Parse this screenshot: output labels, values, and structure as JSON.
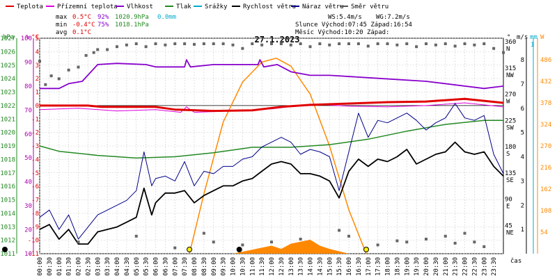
{
  "chart_data": {
    "type": "line",
    "title": "27.1.2023",
    "legend": [
      {
        "name": "Teplota",
        "color": "#e00000"
      },
      {
        "name": "Přízemní teplota",
        "color": "#dd00dd"
      },
      {
        "name": "Vlhkost",
        "color": "#8800cc"
      },
      {
        "name": "Tlak",
        "color": "#228822"
      },
      {
        "name": "Srážky",
        "color": "#00aacc"
      },
      {
        "name": "Rychlost větru",
        "color": "#000000"
      },
      {
        "name": "Náraz větru",
        "color": "#000088"
      },
      {
        "name": "Směr větru",
        "color": "#555555"
      }
    ],
    "stats": {
      "max_label": "max",
      "min_label": "min",
      "avg_label": "avg",
      "max_temp": "0.5°C",
      "max_hum": "92%",
      "max_press": "1020.9hPa",
      "max_rain": "0.0mm",
      "min_temp": "-0.4°C",
      "min_hum": "75%",
      "min_press": "1018.1hPa",
      "avg_temp": "0.1°C",
      "ws": "WS:5.4m/s",
      "wg": "WG:7.2m/s",
      "sun": "Slunce Východ:07:45  Západ:16:54",
      "moon": "Měsíc  Východ:10:20  Západ:"
    },
    "axes": {
      "hpa": {
        "label": "hPa",
        "color": "#228822",
        "ticks": [
          "1027",
          "1026",
          "1025",
          "1024",
          "1023",
          "1022",
          "1021",
          "1020",
          "1019",
          "1018",
          "1017",
          "1016",
          "1015",
          "1014",
          "1013",
          "1012",
          "1011"
        ]
      },
      "pct": {
        "label": "%",
        "color": "#aa00aa",
        "ticks": [
          "100",
          "90",
          "80",
          "70",
          "60",
          "50",
          "40",
          "30",
          "20",
          "10"
        ]
      },
      "degc": {
        "label": "°C",
        "color": "#e00000",
        "ticks": [
          "5",
          "4",
          "3",
          "2",
          "1",
          "0",
          "-1",
          "-2",
          "-3",
          "-4",
          "-5",
          "-6",
          "-7",
          "-8",
          "-9",
          "-10",
          "-11"
        ]
      },
      "dir": {
        "label": "°",
        "ticks": [
          {
            "v": "360",
            "d": "N"
          },
          {
            "v": "315",
            "d": "NW"
          },
          {
            "v": "270",
            "d": "W"
          },
          {
            "v": "225",
            "d": "SW"
          },
          {
            "v": "180",
            "d": "S"
          },
          {
            "v": "135",
            "d": "SE"
          },
          {
            "v": "90",
            "d": "E"
          },
          {
            "v": "45",
            "d": "NE"
          }
        ]
      },
      "ms": {
        "label": "m/s",
        "ticks": [
          "8",
          "7",
          "6",
          "5",
          "4",
          "3",
          "2",
          "1"
        ]
      },
      "mm": {
        "label": "mm",
        "color": "#00aacc",
        "tick": "1"
      },
      "w": {
        "label": "W",
        "color": "#ff8800",
        "ticks": [
          "486",
          "432",
          "378",
          "324",
          "270",
          "216",
          "162",
          "108",
          "54"
        ]
      },
      "time_label": "čas",
      "x_ticks": [
        "00:00",
        "00:30",
        "01:00",
        "01:30",
        "02:00",
        "02:30",
        "03:00",
        "03:30",
        "04:00",
        "04:30",
        "05:00",
        "05:30",
        "06:00",
        "06:30",
        "07:00",
        "07:30",
        "08:00",
        "08:30",
        "09:00",
        "09:30",
        "10:00",
        "10:30",
        "11:00",
        "11:30",
        "12:00",
        "12:30",
        "13:00",
        "13:30",
        "14:00",
        "14:30",
        "15:00",
        "15:30",
        "16:00",
        "16:30",
        "17:00",
        "17:30",
        "18:00",
        "18:30",
        "19:00",
        "19:30",
        "20:00",
        "20:30",
        "21:00",
        "21:30",
        "22:00",
        "22:30",
        "23:00",
        "23:30"
      ]
    },
    "series": {
      "temp": [
        [
          0,
          0.0
        ],
        [
          2.5,
          0.0
        ],
        [
          3.2,
          -0.1
        ],
        [
          6,
          -0.1
        ],
        [
          7,
          -0.3
        ],
        [
          9,
          -0.4
        ],
        [
          11,
          -0.35
        ],
        [
          12.5,
          -0.1
        ],
        [
          14,
          0.05
        ],
        [
          16,
          0.15
        ],
        [
          18,
          0.25
        ],
        [
          20,
          0.3
        ],
        [
          22,
          0.5
        ],
        [
          24,
          0.2
        ]
      ],
      "ground_temp": [
        [
          0,
          -0.3
        ],
        [
          2,
          -0.2
        ],
        [
          4,
          -0.4
        ],
        [
          6,
          -0.3
        ],
        [
          7.3,
          -0.5
        ],
        [
          7.6,
          -0.1
        ],
        [
          8,
          -0.5
        ],
        [
          10,
          -0.4
        ],
        [
          12,
          -0.25
        ],
        [
          14,
          0.1
        ],
        [
          16,
          -0.05
        ],
        [
          18,
          -0.1
        ],
        [
          20,
          0.0
        ],
        [
          22,
          0.2
        ],
        [
          24,
          -0.1
        ]
      ],
      "humidity": [
        [
          0,
          79
        ],
        [
          1,
          79
        ],
        [
          1.5,
          81
        ],
        [
          2.2,
          82
        ],
        [
          3,
          89
        ],
        [
          4,
          89.5
        ],
        [
          5.5,
          89
        ],
        [
          6,
          88
        ],
        [
          7.5,
          88
        ],
        [
          7.6,
          91
        ],
        [
          7.8,
          88
        ],
        [
          9,
          89
        ],
        [
          10.3,
          89
        ],
        [
          11.3,
          89
        ],
        [
          11.4,
          91
        ],
        [
          11.6,
          88
        ],
        [
          12.3,
          89
        ],
        [
          13,
          86
        ],
        [
          14,
          84.5
        ],
        [
          15,
          84.5
        ],
        [
          17,
          83.5
        ],
        [
          20,
          82
        ],
        [
          23,
          79
        ],
        [
          24,
          80
        ]
      ],
      "pressure": [
        [
          0,
          1019
        ],
        [
          1,
          1018.6
        ],
        [
          3,
          1018.3
        ],
        [
          5,
          1018.1
        ],
        [
          7,
          1018.2
        ],
        [
          9,
          1018.5
        ],
        [
          11,
          1018.9
        ],
        [
          13,
          1018.9
        ],
        [
          15,
          1019.1
        ],
        [
          17,
          1019.5
        ],
        [
          19,
          1020.1
        ],
        [
          21,
          1020.6
        ],
        [
          23,
          1020.9
        ],
        [
          24,
          1020.9
        ]
      ],
      "wind_speed": [
        [
          0,
          1.0
        ],
        [
          0.5,
          1.2
        ],
        [
          1,
          0.6
        ],
        [
          1.5,
          1.0
        ],
        [
          2,
          0.4
        ],
        [
          2.5,
          0.4
        ],
        [
          3,
          0.9
        ],
        [
          4,
          1.1
        ],
        [
          4.5,
          1.3
        ],
        [
          5,
          1.5
        ],
        [
          5.4,
          2.7
        ],
        [
          5.8,
          1.6
        ],
        [
          6,
          2.1
        ],
        [
          6.5,
          2.5
        ],
        [
          7,
          2.5
        ],
        [
          7.5,
          2.6
        ],
        [
          8,
          2.1
        ],
        [
          8.5,
          2.4
        ],
        [
          9,
          2.6
        ],
        [
          9.5,
          2.8
        ],
        [
          10,
          2.8
        ],
        [
          10.5,
          3.0
        ],
        [
          11,
          3.1
        ],
        [
          11.5,
          3.4
        ],
        [
          12,
          3.7
        ],
        [
          12.5,
          3.8
        ],
        [
          13,
          3.7
        ],
        [
          13.5,
          3.3
        ],
        [
          14,
          3.3
        ],
        [
          14.5,
          3.2
        ],
        [
          15,
          3.0
        ],
        [
          15.5,
          2.3
        ],
        [
          16,
          3.4
        ],
        [
          16.5,
          3.9
        ],
        [
          17,
          3.6
        ],
        [
          17.5,
          3.9
        ],
        [
          18,
          3.8
        ],
        [
          18.5,
          4.0
        ],
        [
          19,
          4.3
        ],
        [
          19.5,
          3.7
        ],
        [
          20,
          3.9
        ],
        [
          20.5,
          4.1
        ],
        [
          21,
          4.2
        ],
        [
          21.5,
          4.6
        ],
        [
          22,
          4.2
        ],
        [
          22.5,
          4.1
        ],
        [
          23,
          4.2
        ],
        [
          23.5,
          3.6
        ],
        [
          24,
          3.2
        ]
      ],
      "wind_gust": [
        [
          0,
          1.5
        ],
        [
          0.5,
          1.8
        ],
        [
          1,
          1.0
        ],
        [
          1.5,
          1.6
        ],
        [
          2,
          0.6
        ],
        [
          3,
          1.6
        ],
        [
          4,
          2.0
        ],
        [
          4.5,
          2.2
        ],
        [
          5,
          2.6
        ],
        [
          5.4,
          4.2
        ],
        [
          5.8,
          2.8
        ],
        [
          6,
          3.1
        ],
        [
          6.5,
          3.2
        ],
        [
          7,
          3.0
        ],
        [
          7.5,
          3.8
        ],
        [
          8,
          2.8
        ],
        [
          8.5,
          3.4
        ],
        [
          9,
          3.3
        ],
        [
          9.5,
          3.6
        ],
        [
          10,
          3.6
        ],
        [
          10.5,
          3.9
        ],
        [
          11,
          4.0
        ],
        [
          11.5,
          4.4
        ],
        [
          12,
          4.6
        ],
        [
          12.5,
          4.8
        ],
        [
          13,
          4.6
        ],
        [
          13.5,
          4.1
        ],
        [
          14,
          4.3
        ],
        [
          14.5,
          4.2
        ],
        [
          15,
          4.0
        ],
        [
          15.5,
          2.6
        ],
        [
          16,
          4.2
        ],
        [
          16.5,
          5.8
        ],
        [
          17,
          4.8
        ],
        [
          17.5,
          5.5
        ],
        [
          18,
          5.4
        ],
        [
          18.5,
          5.6
        ],
        [
          19,
          5.8
        ],
        [
          19.5,
          5.5
        ],
        [
          20,
          5.1
        ],
        [
          20.5,
          5.4
        ],
        [
          21,
          5.6
        ],
        [
          21.5,
          6.2
        ],
        [
          22,
          5.6
        ],
        [
          22.5,
          5.5
        ],
        [
          23,
          5.7
        ],
        [
          23.5,
          4.1
        ],
        [
          24,
          3.3
        ]
      ],
      "wind_dir_points": [
        [
          0,
          330
        ],
        [
          0.3,
          290
        ],
        [
          0.6,
          305
        ],
        [
          1,
          300
        ],
        [
          1.5,
          315
        ],
        [
          2,
          320
        ],
        [
          2.4,
          340
        ],
        [
          2.8,
          345
        ],
        [
          3,
          350
        ],
        [
          3.5,
          350
        ],
        [
          4,
          355
        ],
        [
          4.5,
          358
        ],
        [
          5,
          360
        ],
        [
          5.5,
          355
        ],
        [
          6,
          362
        ],
        [
          6.5,
          358
        ],
        [
          7,
          363
        ],
        [
          7.5,
          360
        ],
        [
          8,
          359
        ],
        [
          8.5,
          362
        ],
        [
          9,
          360
        ],
        [
          9.5,
          365
        ],
        [
          10,
          358
        ],
        [
          10.5,
          352
        ],
        [
          11,
          362
        ],
        [
          11.5,
          358
        ],
        [
          12,
          364
        ],
        [
          12.5,
          360
        ],
        [
          13,
          358
        ],
        [
          13.5,
          362
        ],
        [
          14,
          355
        ],
        [
          14.5,
          366
        ],
        [
          15,
          358
        ],
        [
          15.5,
          360
        ],
        [
          16,
          362
        ],
        [
          16.5,
          368
        ],
        [
          17,
          356
        ],
        [
          17.5,
          364
        ],
        [
          18,
          360
        ],
        [
          18.5,
          358
        ],
        [
          19,
          362
        ],
        [
          19.5,
          355
        ],
        [
          20,
          364
        ],
        [
          20.5,
          358
        ],
        [
          21,
          362
        ],
        [
          21.5,
          356
        ],
        [
          22,
          360
        ],
        [
          22.5,
          358
        ],
        [
          23,
          362
        ],
        [
          23.5,
          352
        ],
        [
          24,
          345
        ],
        [
          2,
          20
        ],
        [
          5,
          30
        ],
        [
          7,
          10
        ],
        [
          8.5,
          35
        ],
        [
          9,
          20
        ],
        [
          10.5,
          15
        ],
        [
          12,
          20
        ],
        [
          13.5,
          25
        ],
        [
          15.5,
          40
        ],
        [
          16,
          30
        ],
        [
          17.5,
          15
        ],
        [
          18.5,
          22
        ],
        [
          19,
          20
        ],
        [
          20,
          25
        ],
        [
          21,
          30
        ],
        [
          21.5,
          18
        ],
        [
          22,
          35
        ],
        [
          22.5,
          20
        ],
        [
          23,
          12
        ]
      ],
      "solar": [
        [
          7.75,
          0
        ],
        [
          8.5,
          150
        ],
        [
          9.5,
          330
        ],
        [
          10.5,
          430
        ],
        [
          11.5,
          480
        ],
        [
          12.25,
          490
        ],
        [
          13,
          470
        ],
        [
          14,
          400
        ],
        [
          15,
          270
        ],
        [
          16,
          110
        ],
        [
          16.9,
          0
        ]
      ],
      "solar_fill": [
        [
          10,
          0
        ],
        [
          11,
          10
        ],
        [
          12,
          20
        ],
        [
          12.5,
          12
        ],
        [
          13,
          25
        ],
        [
          13.5,
          30
        ],
        [
          14,
          35
        ],
        [
          14.5,
          20
        ],
        [
          15,
          12
        ],
        [
          16,
          0
        ]
      ],
      "sun_markers": {
        "sunrise": 7.75,
        "sunset": 16.9,
        "moonrise": 10.33,
        "moon_start": 0
      }
    }
  }
}
